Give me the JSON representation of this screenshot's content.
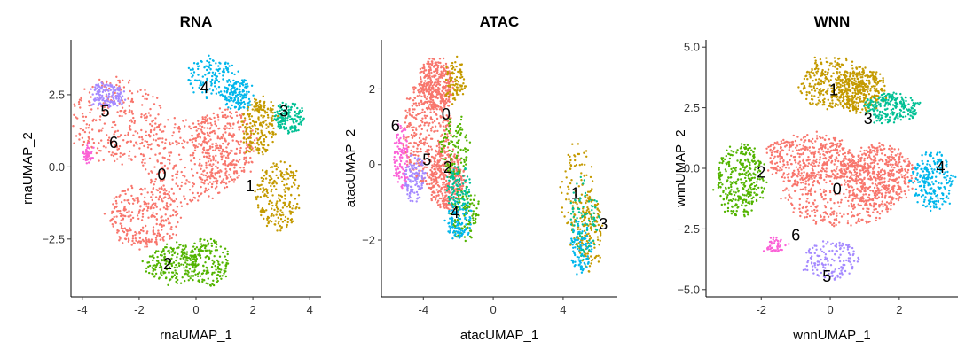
{
  "chart_data": [
    {
      "type": "scatter",
      "title": "RNA",
      "xlabel": "rnaUMAP_1",
      "ylabel": "rnaUMAP_2",
      "xlim": [
        -4.4,
        4.4
      ],
      "ylim": [
        -4.5,
        4.4
      ],
      "xticks": [
        -4,
        -2,
        0,
        2,
        4
      ],
      "xtick_labels": [
        "-4",
        "-2",
        "0",
        "2",
        "4"
      ],
      "yticks": [
        -2.5,
        0,
        2.5
      ],
      "ytick_labels": [
        "−2.5",
        "0.0",
        "2.5"
      ],
      "clusters": [
        {
          "id": "0",
          "label": "0",
          "color": "#F8766D",
          "points": 1200,
          "shape": [
            [
              -2.9,
              1.6,
              1.7,
              1.5
            ],
            [
              -0.3,
              0.2,
              1.6,
              1.6
            ],
            [
              1.0,
              0.7,
              1.1,
              1.3
            ],
            [
              -1.8,
              -1.7,
              1.3,
              1.1
            ]
          ],
          "label_pos": [
            -1.2,
            -0.3
          ]
        },
        {
          "id": "1",
          "label": "1",
          "color": "#C49A00",
          "points": 420,
          "shape": [
            [
              2.9,
              -1.0,
              0.8,
              1.2
            ],
            [
              2.2,
              1.4,
              0.6,
              1.0
            ]
          ],
          "label_pos": [
            1.9,
            -0.7
          ]
        },
        {
          "id": "2",
          "label": "2",
          "color": "#53B400",
          "points": 380,
          "shape": [
            [
              -0.8,
              -3.4,
              1.0,
              0.7
            ],
            [
              0.4,
              -3.3,
              0.8,
              0.8
            ]
          ],
          "label_pos": [
            -1.0,
            -3.4
          ]
        },
        {
          "id": "3",
          "label": "3",
          "color": "#00C094",
          "points": 160,
          "shape": [
            [
              3.3,
              1.7,
              0.5,
              0.5
            ]
          ],
          "label_pos": [
            3.1,
            1.9
          ]
        },
        {
          "id": "4",
          "label": "4",
          "color": "#00B6EB",
          "points": 280,
          "shape": [
            [
              0.6,
              3.1,
              0.9,
              0.7
            ],
            [
              1.5,
              2.5,
              0.5,
              0.5
            ]
          ],
          "label_pos": [
            0.3,
            2.7
          ]
        },
        {
          "id": "5",
          "label": "5",
          "color": "#A58AFF",
          "points": 140,
          "shape": [
            [
              -3.1,
              2.5,
              0.6,
              0.4
            ]
          ],
          "label_pos": [
            -3.2,
            1.9
          ]
        },
        {
          "id": "6",
          "label": "6",
          "color": "#FB61D7",
          "points": 45,
          "shape": [
            [
              -3.8,
              0.4,
              0.15,
              0.3
            ]
          ],
          "label_pos": [
            -2.9,
            0.8
          ]
        }
      ]
    },
    {
      "type": "scatter",
      "title": "ATAC",
      "xlabel": "atacUMAP_1",
      "ylabel": "atacUMAP_2",
      "xlim": [
        -6.4,
        7.1
      ],
      "ylim": [
        -3.5,
        3.3
      ],
      "xticks": [
        -4,
        0,
        4
      ],
      "xtick_labels": [
        "-4",
        "0",
        "4"
      ],
      "yticks": [
        -2,
        0,
        2
      ],
      "ytick_labels": [
        "−2",
        "0",
        "2"
      ],
      "clusters": [
        {
          "id": "0",
          "label": "0",
          "color": "#F8766D",
          "points": 1050,
          "shape": [
            [
              -3.8,
              0.9,
              1.4,
              1.4
            ],
            [
              -3.3,
              2.1,
              1.0,
              0.7
            ],
            [
              -2.7,
              -0.4,
              1.0,
              0.8
            ]
          ],
          "label_pos": [
            -2.7,
            1.3
          ]
        },
        {
          "id": "1",
          "label": "1",
          "color": "#C49A00",
          "points": 330,
          "shape": [
            [
              4.8,
              -0.8,
              1.0,
              1.4
            ],
            [
              5.5,
              -1.8,
              0.7,
              1.0
            ],
            [
              -2.2,
              2.2,
              0.6,
              0.6
            ]
          ],
          "label_pos": [
            4.7,
            -0.8
          ]
        },
        {
          "id": "2",
          "label": "2",
          "color": "#53B400",
          "points": 220,
          "shape": [
            [
              -1.6,
              -1.3,
              0.8,
              0.7
            ],
            [
              -2.2,
              0.5,
              0.8,
              0.8
            ]
          ],
          "label_pos": [
            -2.6,
            -0.1
          ]
        },
        {
          "id": "3",
          "label": "3",
          "color": "#00C094",
          "points": 200,
          "shape": [
            [
              5.2,
              -1.4,
              0.8,
              1.1
            ],
            [
              -2.0,
              -0.6,
              0.7,
              0.6
            ]
          ],
          "label_pos": [
            6.3,
            -1.6
          ]
        },
        {
          "id": "4",
          "label": "4",
          "color": "#00B6EB",
          "points": 200,
          "shape": [
            [
              -2.0,
              -1.5,
              0.8,
              0.5
            ],
            [
              5.0,
              -2.2,
              0.6,
              0.7
            ]
          ],
          "label_pos": [
            -2.2,
            -1.3
          ]
        },
        {
          "id": "5",
          "label": "5",
          "color": "#A58AFF",
          "points": 120,
          "shape": [
            [
              -4.5,
              -0.4,
              0.6,
              0.6
            ]
          ],
          "label_pos": [
            -3.8,
            0.1
          ]
        },
        {
          "id": "6",
          "label": "6",
          "color": "#FB61D7",
          "points": 110,
          "shape": [
            [
              -5.3,
              0.2,
              0.4,
              0.8
            ]
          ],
          "label_pos": [
            -5.6,
            1.0
          ]
        }
      ]
    },
    {
      "type": "scatter",
      "title": "WNN",
      "xlabel": "wnnUMAP_1",
      "ylabel": "wnnUMAP_2",
      "xlim": [
        -3.6,
        3.7
      ],
      "ylim": [
        -5.3,
        5.3
      ],
      "xticks": [
        -2,
        0,
        2
      ],
      "xtick_labels": [
        "-2",
        "0",
        "2"
      ],
      "yticks": [
        -5.0,
        -2.5,
        0.0,
        2.5,
        5.0
      ],
      "ytick_labels": [
        "−5.0",
        "−2.5",
        "0.0",
        "2.5",
        "5.0"
      ],
      "clusters": [
        {
          "id": "0",
          "label": "0",
          "color": "#F8766D",
          "points": 1250,
          "shape": [
            [
              0.3,
              -1.0,
              1.7,
              1.4
            ],
            [
              -0.6,
              0.4,
              1.3,
              1.0
            ],
            [
              1.4,
              -0.3,
              1.0,
              1.3
            ]
          ],
          "label_pos": [
            0.2,
            -0.9
          ]
        },
        {
          "id": "1",
          "label": "1",
          "color": "#C49A00",
          "points": 620,
          "shape": [
            [
              0.1,
              3.5,
              1.0,
              1.1
            ],
            [
              0.9,
              3.2,
              0.7,
              0.9
            ]
          ],
          "label_pos": [
            0.1,
            3.2
          ]
        },
        {
          "id": "2",
          "label": "2",
          "color": "#53B400",
          "points": 330,
          "shape": [
            [
              -2.6,
              -0.5,
              0.7,
              1.5
            ]
          ],
          "label_pos": [
            -2.0,
            -0.2
          ]
        },
        {
          "id": "3",
          "label": "3",
          "color": "#00C094",
          "points": 230,
          "shape": [
            [
              1.8,
              2.5,
              0.8,
              0.6
            ]
          ],
          "label_pos": [
            1.1,
            2.0
          ]
        },
        {
          "id": "4",
          "label": "4",
          "color": "#00B6EB",
          "points": 230,
          "shape": [
            [
              3.0,
              -0.5,
              0.6,
              1.2
            ]
          ],
          "label_pos": [
            3.2,
            0.0
          ]
        },
        {
          "id": "5",
          "label": "5",
          "color": "#A58AFF",
          "points": 150,
          "shape": [
            [
              0.0,
              -3.8,
              0.8,
              0.8
            ]
          ],
          "label_pos": [
            -0.1,
            -4.5
          ]
        },
        {
          "id": "6",
          "label": "6",
          "color": "#FB61D7",
          "points": 50,
          "shape": [
            [
              -1.6,
              -3.2,
              0.3,
              0.3
            ]
          ],
          "label_pos": [
            -1.0,
            -2.8
          ]
        }
      ]
    }
  ]
}
